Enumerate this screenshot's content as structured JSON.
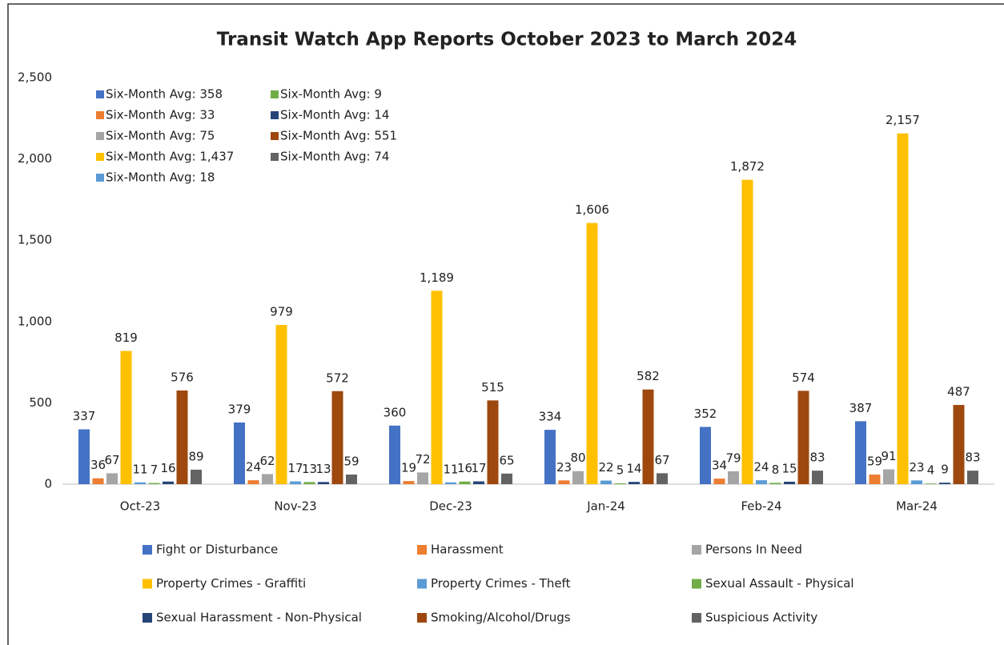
{
  "chart_data": {
    "type": "bar",
    "title": "Transit Watch App Reports October 2023 to March 2024",
    "categories": [
      "Oct-23",
      "Nov-23",
      "Dec-23",
      "Jan-24",
      "Feb-24",
      "Mar-24"
    ],
    "series": [
      {
        "name": "Fight or Disturbance",
        "color": "#4472c4",
        "values": [
          337,
          379,
          360,
          334,
          352,
          387
        ]
      },
      {
        "name": "Harassment",
        "color": "#ed7d31",
        "values": [
          36,
          24,
          19,
          23,
          34,
          59
        ]
      },
      {
        "name": "Persons In Need",
        "color": "#a5a5a5",
        "values": [
          67,
          62,
          72,
          80,
          79,
          91
        ]
      },
      {
        "name": "Property Crimes - Graffiti",
        "color": "#ffc000",
        "values": [
          819,
          979,
          1189,
          1606,
          1872,
          2157
        ],
        "value_labels": [
          "819",
          "979",
          "1,189",
          "1,606",
          "1,872",
          "2,157"
        ]
      },
      {
        "name": "Property Crimes - Theft",
        "color": "#5b9bd5",
        "values": [
          11,
          17,
          11,
          22,
          24,
          23
        ]
      },
      {
        "name": "Sexual Assault - Physical",
        "color": "#70ad47",
        "values": [
          7,
          13,
          16,
          5,
          8,
          4
        ]
      },
      {
        "name": "Sexual Harassment - Non-Physical",
        "color": "#264478",
        "values": [
          16,
          13,
          17,
          14,
          15,
          9
        ]
      },
      {
        "name": "Smoking/Alcohol/Drugs",
        "color": "#9e480e",
        "values": [
          576,
          572,
          515,
          582,
          574,
          487
        ]
      },
      {
        "name": "Suspicious Activity",
        "color": "#636363",
        "values": [
          89,
          59,
          65,
          67,
          83,
          83
        ]
      }
    ],
    "annotations": [
      {
        "text": "Six-Month Avg: 358",
        "color": "#4472c4"
      },
      {
        "text": "Six-Month Avg: 33",
        "color": "#ed7d31"
      },
      {
        "text": "Six-Month Avg: 75",
        "color": "#a5a5a5"
      },
      {
        "text": "Six-Month Avg: 1,437",
        "color": "#ffc000"
      },
      {
        "text": "Six-Month Avg: 18",
        "color": "#5b9bd5"
      },
      {
        "text": "Six-Month Avg: 9",
        "color": "#70ad47"
      },
      {
        "text": "Six-Month Avg: 14",
        "color": "#264478"
      },
      {
        "text": "Six-Month Avg: 551",
        "color": "#9e480e"
      },
      {
        "text": "Six-Month Avg: 74",
        "color": "#636363"
      }
    ],
    "ylim": [
      0,
      2500
    ],
    "yticks": [
      0,
      500,
      {
        "value": 1000,
        "label": "1,000"
      },
      {
        "value": 1500,
        "label": "1,500"
      },
      {
        "value": 2000,
        "label": "2,000"
      },
      {
        "value": 2500,
        "label": "2,500"
      }
    ],
    "grid": false
  }
}
